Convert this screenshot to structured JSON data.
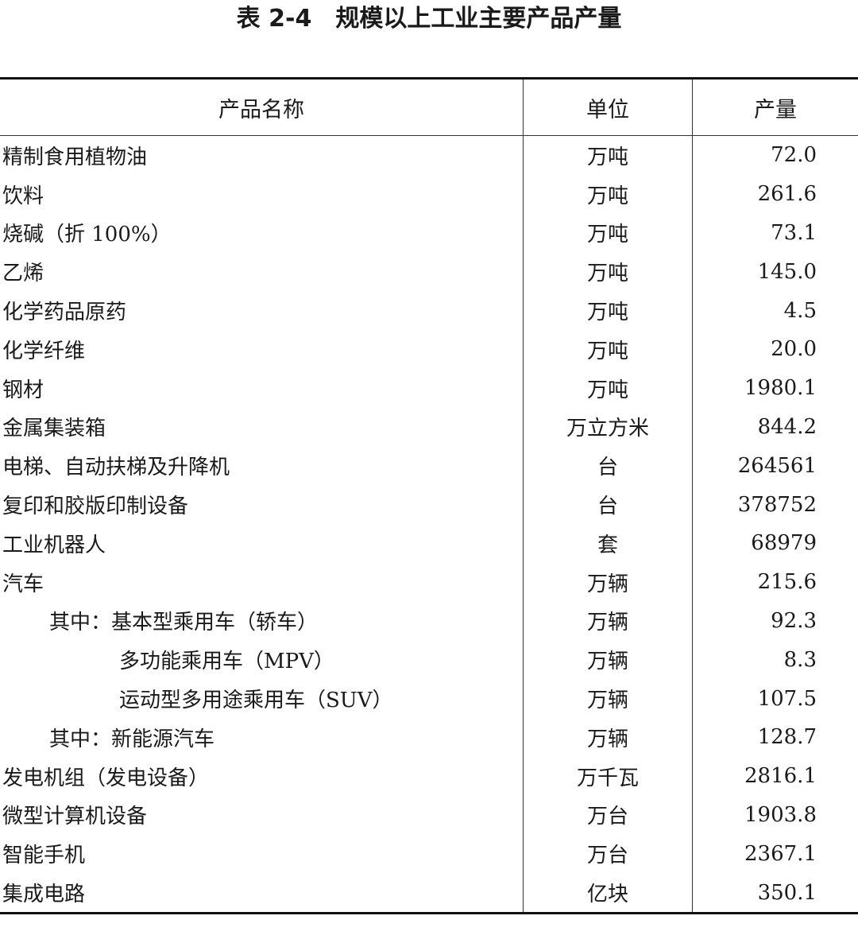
{
  "title": "表 2-4　规模以上工业主要产品产量",
  "headers": [
    "产品名称",
    "单位",
    "产量"
  ],
  "rows": [
    {
      "name": "精制食用植物油",
      "unit": "万吨",
      "value": "72.0",
      "indent": 0
    },
    {
      "name": "饮料",
      "unit": "万吨",
      "value": "261.6",
      "indent": 0
    },
    {
      "name": "烧碱（折 100%）",
      "unit": "万吨",
      "value": "73.1",
      "indent": 0
    },
    {
      "name": "乙烯",
      "unit": "万吨",
      "value": "145.0",
      "indent": 0
    },
    {
      "name": "化学药品原药",
      "unit": "万吨",
      "value": "4.5",
      "indent": 0
    },
    {
      "name": "化学纤维",
      "unit": "万吨",
      "value": "20.0",
      "indent": 0
    },
    {
      "name": "钢材",
      "unit": "万吨",
      "value": "1980.1",
      "indent": 0
    },
    {
      "name": "金属集装箱",
      "unit": "万立方米",
      "value": "844.2",
      "indent": 0
    },
    {
      "name": "电梯、自动扶梯及升降机",
      "unit": "台",
      "value": "264561",
      "indent": 0
    },
    {
      "name": "复印和胶版印制设备",
      "unit": "台",
      "value": "378752",
      "indent": 0
    },
    {
      "name": "工业机器人",
      "unit": "套",
      "value": "68979",
      "indent": 0
    },
    {
      "name": "汽车",
      "unit": "万辆",
      "value": "215.6",
      "indent": 0
    },
    {
      "name": "其中：基本型乘用车（轿车）",
      "unit": "万辆",
      "value": "92.3",
      "indent": 1
    },
    {
      "name": "多功能乘用车（MPV）",
      "unit": "万辆",
      "value": "8.3",
      "indent": 2
    },
    {
      "name": "运动型多用途乘用车（SUV）",
      "unit": "万辆",
      "value": "107.5",
      "indent": 2
    },
    {
      "name": "其中：新能源汽车",
      "unit": "万辆",
      "value": "128.7",
      "indent": 1
    },
    {
      "name": "发电机组（发电设备）",
      "unit": "万千瓦",
      "value": "2816.1",
      "indent": 0
    },
    {
      "name": "微型计算机设备",
      "unit": "万台",
      "value": "1903.8",
      "indent": 0
    },
    {
      "name": "智能手机",
      "unit": "万台",
      "value": "2367.1",
      "indent": 0
    },
    {
      "name": "集成电路",
      "unit": "亿块",
      "value": "350.1",
      "indent": 0
    }
  ]
}
